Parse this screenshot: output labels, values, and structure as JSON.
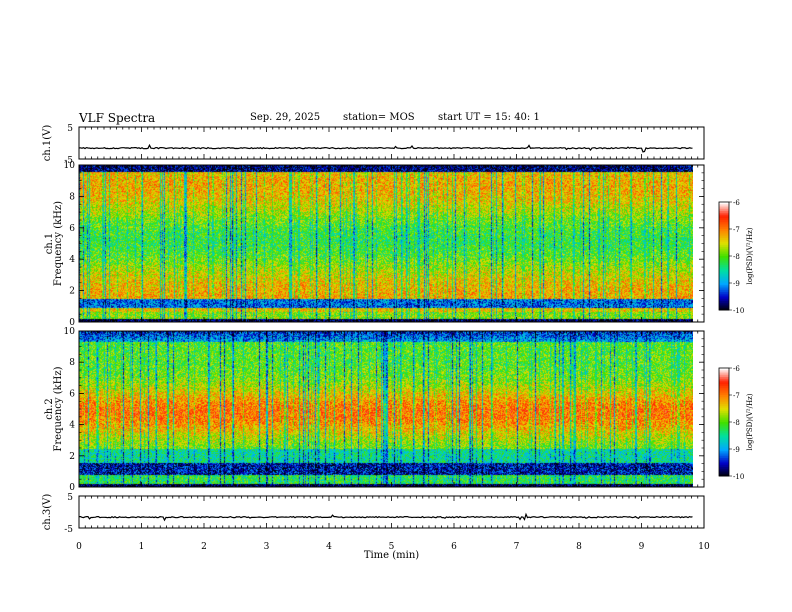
{
  "header": {
    "title": "VLF Spectra",
    "date": "Sep. 29, 2025",
    "station": "station= MOS",
    "start": "start  UT =   15: 40: 1"
  },
  "chart_data": [
    {
      "type": "line",
      "name": "ch1-waveform",
      "ylabel": "ch.1(V)",
      "ylim": [
        -5,
        5
      ],
      "yticks": [
        "5",
        "-5"
      ],
      "baseline": -1.6,
      "xlim": [
        0,
        10
      ],
      "x_end": 9.83
    },
    {
      "type": "heatmap",
      "name": "ch1-spectrogram",
      "ylabel_top": "ch.1",
      "ylabel": "Frequency (kHz)",
      "ylim": [
        0,
        10
      ],
      "yticks": [
        "0",
        "2",
        "4",
        "6",
        "8",
        "10"
      ],
      "xlim": [
        0,
        10
      ],
      "x_end": 9.83,
      "colorbar": {
        "label": "log(PSD)(V²/Hz)",
        "range": [
          -10,
          -6
        ],
        "ticks": [
          "-6",
          "-7",
          "-8",
          "-9",
          "-10"
        ]
      }
    },
    {
      "type": "heatmap",
      "name": "ch2-spectrogram",
      "ylabel_top": "ch.2",
      "ylabel": "Frequency (kHz)",
      "ylim": [
        0,
        10
      ],
      "yticks": [
        "0",
        "2",
        "4",
        "6",
        "8",
        "10"
      ],
      "xlim": [
        0,
        10
      ],
      "x_end": 9.83,
      "colorbar": {
        "label": "log(PSD)(V²/Hz)",
        "range": [
          -10,
          -6
        ],
        "ticks": [
          "-6",
          "-7",
          "-8",
          "-9",
          "-10"
        ]
      }
    },
    {
      "type": "line",
      "name": "ch3-waveform",
      "ylabel": "ch.3(V)",
      "ylim": [
        -5,
        5
      ],
      "yticks": [
        "5",
        "-5"
      ],
      "baseline": -1.6,
      "xlim": [
        0,
        10
      ],
      "x_end": 9.83
    }
  ],
  "xaxis": {
    "label": "Time (min)",
    "ticks": [
      "0",
      "1",
      "2",
      "3",
      "4",
      "5",
      "6",
      "7",
      "8",
      "9",
      "10"
    ]
  },
  "colors": {
    "colormap": [
      "#000000",
      "#0000c8",
      "#00a8ff",
      "#00e0a0",
      "#40e000",
      "#e0e000",
      "#ff8000",
      "#ff2000",
      "#ffffff"
    ]
  }
}
